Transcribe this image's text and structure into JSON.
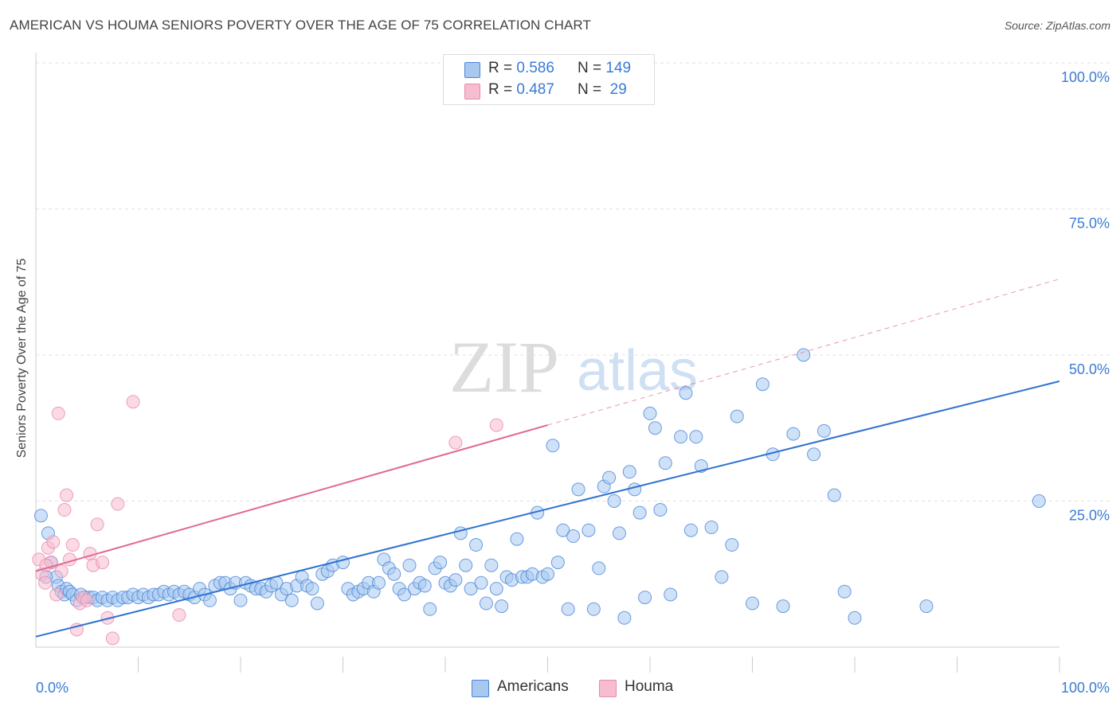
{
  "title": "AMERICAN VS HOUMA SENIORS POVERTY OVER THE AGE OF 75 CORRELATION CHART",
  "source": "Source: ZipAtlas.com",
  "watermark": {
    "zip": "ZIP",
    "atlas": "atlas"
  },
  "legend_top": {
    "rows": [
      {
        "r_label": "R = ",
        "r_value": "0.586",
        "n_label": "N = ",
        "n_value": "149",
        "color": "#a8c8f0"
      },
      {
        "r_label": "R = ",
        "r_value": "0.487",
        "n_label": "N = ",
        "n_value": " 29",
        "color": "#f7bcd0"
      }
    ]
  },
  "legend_bottom": [
    {
      "label": "Americans",
      "color": "#a8c8f0"
    },
    {
      "label": "Houma",
      "color": "#f7bcd0"
    }
  ],
  "chart_data": {
    "type": "scatter",
    "title": "AMERICAN VS HOUMA SENIORS POVERTY OVER THE AGE OF 75 CORRELATION CHART",
    "xlabel": "",
    "ylabel": "Seniors Poverty Over the Age of 75",
    "xlim": [
      0,
      100
    ],
    "ylim": [
      0,
      100
    ],
    "x_tick_labels": [
      "0.0%",
      "100.0%"
    ],
    "y_tick_labels": [
      "25.0%",
      "50.0%",
      "75.0%",
      "100.0%"
    ],
    "grid": true,
    "series": [
      {
        "name": "Americans",
        "color": "#4a86d8",
        "fill": "#a8c8f0",
        "trend": {
          "x": [
            0,
            100
          ],
          "y": [
            1.8,
            45.5
          ],
          "style": "solid",
          "color": "#2f72d0"
        },
        "points": [
          [
            0.5,
            22.5
          ],
          [
            1.2,
            19.5
          ],
          [
            1.5,
            14.5
          ],
          [
            2.0,
            12.0
          ],
          [
            2.2,
            10.5
          ],
          [
            2.5,
            9.5
          ],
          [
            2.8,
            9.0
          ],
          [
            3.0,
            10.0
          ],
          [
            3.3,
            9.5
          ],
          [
            3.6,
            9.0
          ],
          [
            4.0,
            8.0
          ],
          [
            4.4,
            9.0
          ],
          [
            4.8,
            8.5
          ],
          [
            5.2,
            8.5
          ],
          [
            5.6,
            8.5
          ],
          [
            6.0,
            8.0
          ],
          [
            6.5,
            8.5
          ],
          [
            7.0,
            8.0
          ],
          [
            7.5,
            8.5
          ],
          [
            8.0,
            8.0
          ],
          [
            8.5,
            8.5
          ],
          [
            9.0,
            8.5
          ],
          [
            9.5,
            9.0
          ],
          [
            10.0,
            8.5
          ],
          [
            10.5,
            9.0
          ],
          [
            11.0,
            8.5
          ],
          [
            11.5,
            9.0
          ],
          [
            12.0,
            9.0
          ],
          [
            12.5,
            9.5
          ],
          [
            13.0,
            9.0
          ],
          [
            13.5,
            9.5
          ],
          [
            14.0,
            9.0
          ],
          [
            14.5,
            9.5
          ],
          [
            15.0,
            9.0
          ],
          [
            15.5,
            8.5
          ],
          [
            16.0,
            10.0
          ],
          [
            16.5,
            9.0
          ],
          [
            17.0,
            8.0
          ],
          [
            17.5,
            10.5
          ],
          [
            18.0,
            11.0
          ],
          [
            18.5,
            11.0
          ],
          [
            19.0,
            10.0
          ],
          [
            19.5,
            11.0
          ],
          [
            20.0,
            8.0
          ],
          [
            20.5,
            11.0
          ],
          [
            21.0,
            10.5
          ],
          [
            21.5,
            10.0
          ],
          [
            22.0,
            10.0
          ],
          [
            22.5,
            9.5
          ],
          [
            23.0,
            10.5
          ],
          [
            23.5,
            11.0
          ],
          [
            24.0,
            9.0
          ],
          [
            24.5,
            10.0
          ],
          [
            25.0,
            8.0
          ],
          [
            25.5,
            10.5
          ],
          [
            26.0,
            12.0
          ],
          [
            26.5,
            10.5
          ],
          [
            27.0,
            10.0
          ],
          [
            27.5,
            7.5
          ],
          [
            28.0,
            12.5
          ],
          [
            28.5,
            13.0
          ],
          [
            29.0,
            14.0
          ],
          [
            30.0,
            14.5
          ],
          [
            30.5,
            10.0
          ],
          [
            31.0,
            9.0
          ],
          [
            31.5,
            9.5
          ],
          [
            32.0,
            10.0
          ],
          [
            32.5,
            11.0
          ],
          [
            33.0,
            9.5
          ],
          [
            33.5,
            11.0
          ],
          [
            34.0,
            15.0
          ],
          [
            34.5,
            13.5
          ],
          [
            35.0,
            12.5
          ],
          [
            35.5,
            10.0
          ],
          [
            36.0,
            9.0
          ],
          [
            36.5,
            14.0
          ],
          [
            37.0,
            10.0
          ],
          [
            37.5,
            11.0
          ],
          [
            38.0,
            10.5
          ],
          [
            38.5,
            6.5
          ],
          [
            39.0,
            13.5
          ],
          [
            39.5,
            14.5
          ],
          [
            40.0,
            11.0
          ],
          [
            40.5,
            10.5
          ],
          [
            41.0,
            11.5
          ],
          [
            41.5,
            19.5
          ],
          [
            42.0,
            14.0
          ],
          [
            42.5,
            10.0
          ],
          [
            43.0,
            17.5
          ],
          [
            43.5,
            11.0
          ],
          [
            44.0,
            7.5
          ],
          [
            44.5,
            14.0
          ],
          [
            45.0,
            10.0
          ],
          [
            45.5,
            7.0
          ],
          [
            46.0,
            12.0
          ],
          [
            46.5,
            11.5
          ],
          [
            47.0,
            18.5
          ],
          [
            47.5,
            12.0
          ],
          [
            48.0,
            12.0
          ],
          [
            48.5,
            12.5
          ],
          [
            49.0,
            23.0
          ],
          [
            49.5,
            12.0
          ],
          [
            50.0,
            12.5
          ],
          [
            50.5,
            34.5
          ],
          [
            51.0,
            14.5
          ],
          [
            51.5,
            20.0
          ],
          [
            52.0,
            6.5
          ],
          [
            52.5,
            19.0
          ],
          [
            53.0,
            27.0
          ],
          [
            54.0,
            20.0
          ],
          [
            54.5,
            6.5
          ],
          [
            55.0,
            13.5
          ],
          [
            55.5,
            27.5
          ],
          [
            56.0,
            29.0
          ],
          [
            56.5,
            25.0
          ],
          [
            57.0,
            19.5
          ],
          [
            57.5,
            5.0
          ],
          [
            58.0,
            30.0
          ],
          [
            58.5,
            27.0
          ],
          [
            59.0,
            23.0
          ],
          [
            59.5,
            8.5
          ],
          [
            60.0,
            40.0
          ],
          [
            60.5,
            37.5
          ],
          [
            61.0,
            23.5
          ],
          [
            61.5,
            31.5
          ],
          [
            62.0,
            9.0
          ],
          [
            63.0,
            36.0
          ],
          [
            63.5,
            43.5
          ],
          [
            64.0,
            20.0
          ],
          [
            64.5,
            36.0
          ],
          [
            65.0,
            31.0
          ],
          [
            66.0,
            20.5
          ],
          [
            67.0,
            12.0
          ],
          [
            68.0,
            17.5
          ],
          [
            68.5,
            39.5
          ],
          [
            70.0,
            7.5
          ],
          [
            71.0,
            45.0
          ],
          [
            72.0,
            33.0
          ],
          [
            73.0,
            7.0
          ],
          [
            74.0,
            36.5
          ],
          [
            75.0,
            50.0
          ],
          [
            76.0,
            33.0
          ],
          [
            77.0,
            37.0
          ],
          [
            78.0,
            26.0
          ],
          [
            79.0,
            9.5
          ],
          [
            80.0,
            5.0
          ],
          [
            87.0,
            7.0
          ],
          [
            98.0,
            25.0
          ],
          [
            1.0,
            12.0
          ]
        ]
      },
      {
        "name": "Houma",
        "color": "#e88aa8",
        "fill": "#f7bcd0",
        "trend": {
          "x": [
            0,
            50
          ],
          "y": [
            13.0,
            38.0
          ],
          "style": "solid",
          "color": "#e06894",
          "extension": {
            "x": [
              50,
              100
            ],
            "y": [
              38.0,
              63.0
            ],
            "style": "dashed"
          }
        },
        "points": [
          [
            0.3,
            15.0
          ],
          [
            0.6,
            12.5
          ],
          [
            0.9,
            11.0
          ],
          [
            1.2,
            17.0
          ],
          [
            1.5,
            14.5
          ],
          [
            1.7,
            18.0
          ],
          [
            2.0,
            9.0
          ],
          [
            2.2,
            40.0
          ],
          [
            2.5,
            13.0
          ],
          [
            2.8,
            23.5
          ],
          [
            3.0,
            26.0
          ],
          [
            3.3,
            15.0
          ],
          [
            3.6,
            17.5
          ],
          [
            4.0,
            3.0
          ],
          [
            4.3,
            7.5
          ],
          [
            4.6,
            8.5
          ],
          [
            5.0,
            8.0
          ],
          [
            5.3,
            16.0
          ],
          [
            5.6,
            14.0
          ],
          [
            6.0,
            21.0
          ],
          [
            6.5,
            14.5
          ],
          [
            7.0,
            5.0
          ],
          [
            7.5,
            1.5
          ],
          [
            8.0,
            24.5
          ],
          [
            9.5,
            42.0
          ],
          [
            14.0,
            5.5
          ],
          [
            41.0,
            35.0
          ],
          [
            45.0,
            38.0
          ],
          [
            1.0,
            14.0
          ]
        ]
      }
    ]
  }
}
